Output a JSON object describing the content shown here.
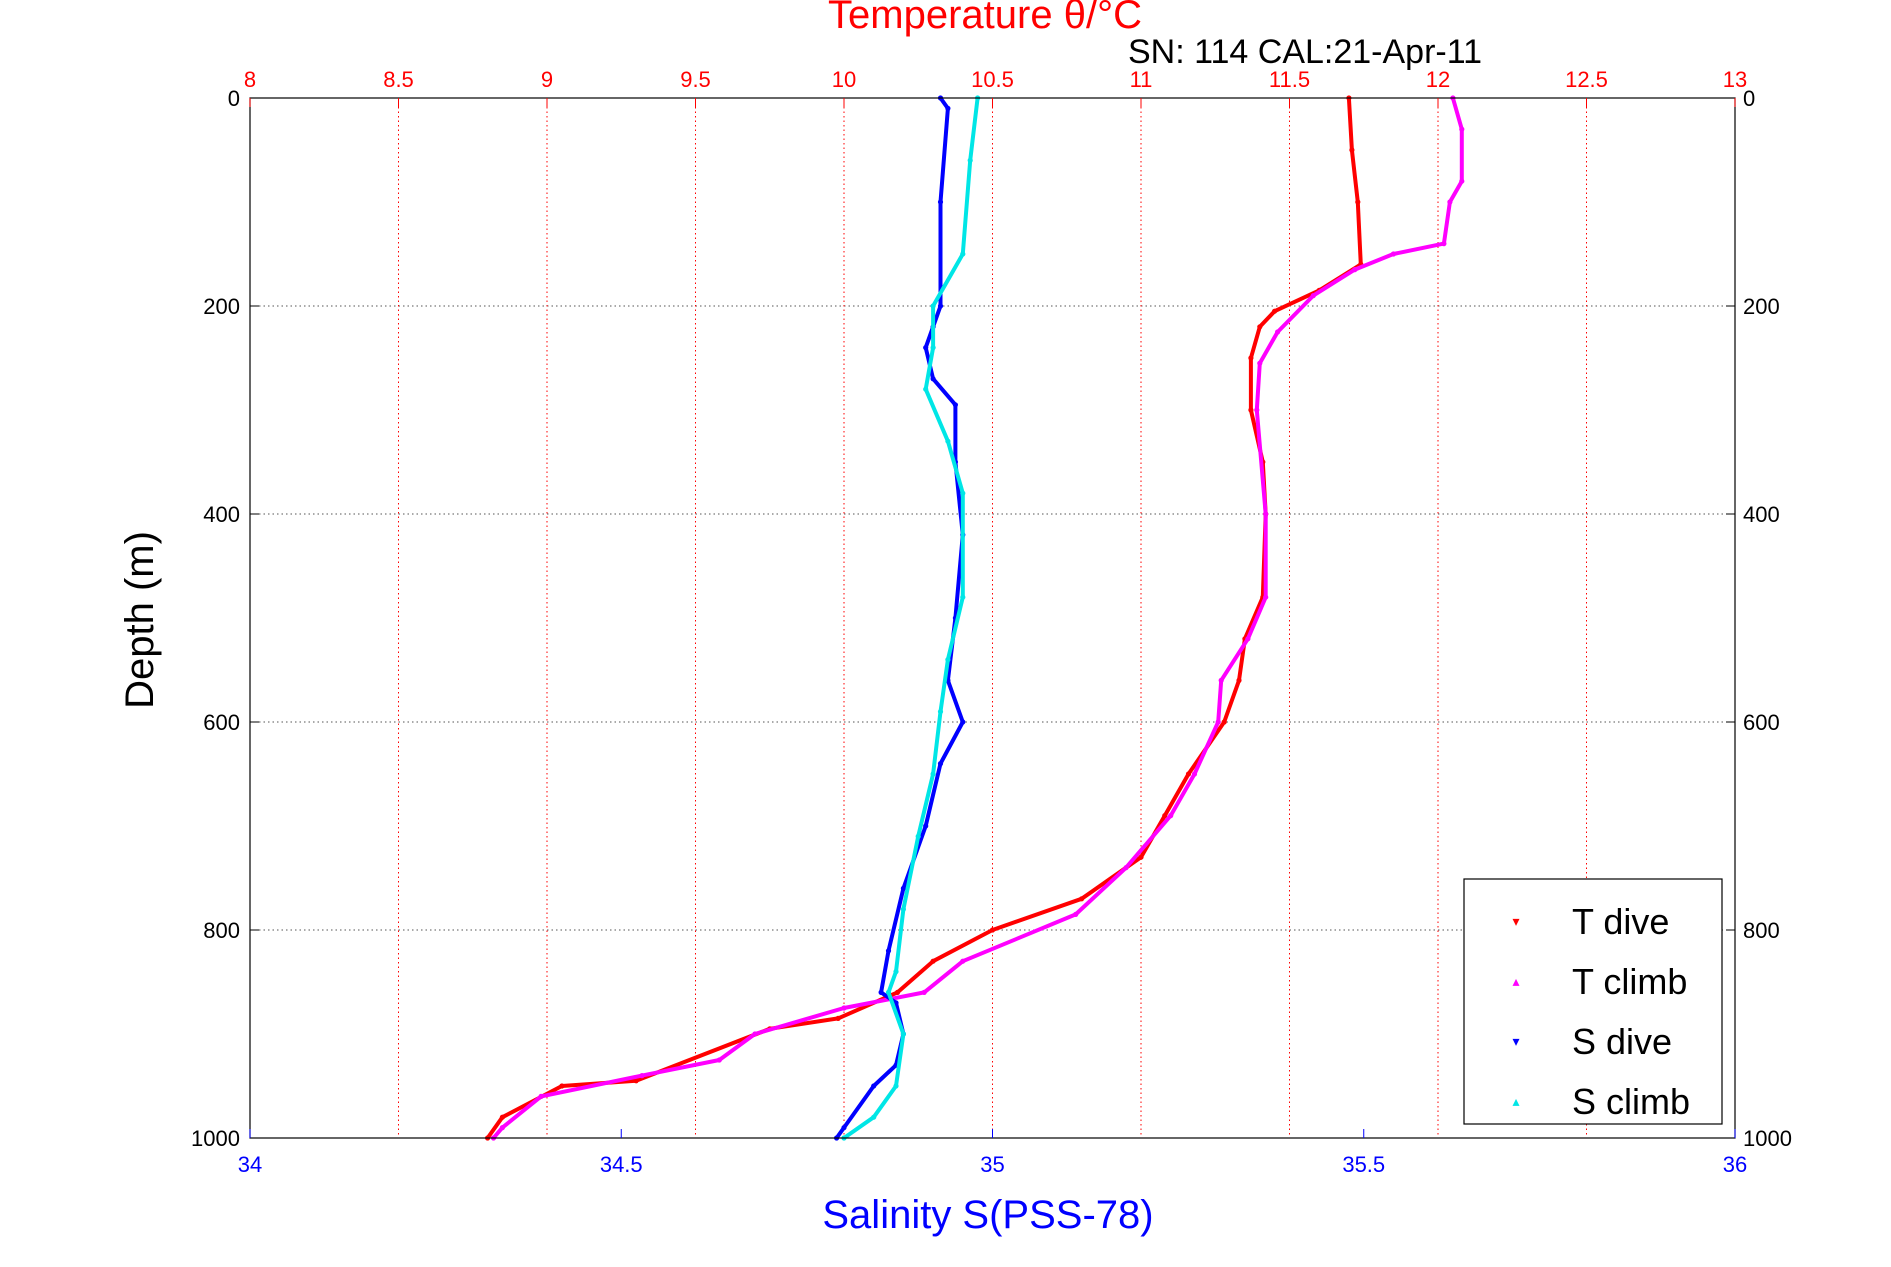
{
  "chart_data": {
    "type": "line",
    "title": "Temperature θ/°C",
    "subtitle": "SN: 114  CAL:21-Apr-11",
    "ylabel": "Depth (m)",
    "xlabel": "Salinity S(PSS-78)",
    "y_axis": {
      "label": "Depth (m)",
      "range": [
        0,
        1000
      ],
      "reversed": true,
      "ticks": [
        0,
        200,
        400,
        600,
        800,
        1000
      ],
      "tick_labels": [
        "0",
        "200",
        "400",
        "600",
        "800",
        "1000"
      ],
      "grid": true,
      "mirrored_right": true
    },
    "x_bottom": {
      "label": "Salinity S(PSS-78)",
      "range": [
        34,
        36
      ],
      "ticks": [
        34,
        34.5,
        35,
        35.5,
        36
      ],
      "tick_labels": [
        "34",
        "34.5",
        "35",
        "35.5",
        "36"
      ],
      "color": "#0000ff"
    },
    "x_top": {
      "label": "Temperature θ/°C",
      "range": [
        8,
        13
      ],
      "ticks": [
        8,
        8.5,
        9,
        9.5,
        10,
        10.5,
        11,
        11.5,
        12,
        12.5,
        13
      ],
      "tick_labels": [
        "8",
        "8.5",
        "9",
        "9.5",
        "10",
        "10.5",
        "11",
        "11.5",
        "12",
        "12.5",
        "13"
      ],
      "color": "#ff0000",
      "grid": true
    },
    "legend": {
      "placement": "bottom-right"
    },
    "series": [
      {
        "name": "T dive",
        "axis": "temperature",
        "color": "#ff0000",
        "marker": "▾",
        "points": [
          [
            11.7,
            0
          ],
          [
            11.71,
            50
          ],
          [
            11.73,
            100
          ],
          [
            11.74,
            160
          ],
          [
            11.6,
            185
          ],
          [
            11.45,
            205
          ],
          [
            11.4,
            220
          ],
          [
            11.37,
            250
          ],
          [
            11.37,
            300
          ],
          [
            11.41,
            350
          ],
          [
            11.42,
            400
          ],
          [
            11.41,
            480
          ],
          [
            11.35,
            520
          ],
          [
            11.33,
            560
          ],
          [
            11.28,
            600
          ],
          [
            11.16,
            650
          ],
          [
            11.08,
            690
          ],
          [
            11.0,
            730
          ],
          [
            10.8,
            770
          ],
          [
            10.5,
            800
          ],
          [
            10.3,
            830
          ],
          [
            10.18,
            860
          ],
          [
            9.98,
            885
          ],
          [
            9.75,
            895
          ],
          [
            9.3,
            945
          ],
          [
            9.05,
            950
          ],
          [
            8.85,
            980
          ],
          [
            8.8,
            1000
          ]
        ]
      },
      {
        "name": "T climb",
        "axis": "temperature",
        "color": "#ff00ff",
        "marker": "▴",
        "points": [
          [
            12.05,
            0
          ],
          [
            12.08,
            30
          ],
          [
            12.08,
            80
          ],
          [
            12.04,
            100
          ],
          [
            12.02,
            140
          ],
          [
            11.85,
            150
          ],
          [
            11.72,
            165
          ],
          [
            11.58,
            190
          ],
          [
            11.46,
            225
          ],
          [
            11.4,
            255
          ],
          [
            11.39,
            300
          ],
          [
            11.42,
            400
          ],
          [
            11.42,
            480
          ],
          [
            11.36,
            520
          ],
          [
            11.27,
            560
          ],
          [
            11.26,
            600
          ],
          [
            11.18,
            650
          ],
          [
            11.1,
            690
          ],
          [
            10.95,
            740
          ],
          [
            10.78,
            785
          ],
          [
            10.4,
            830
          ],
          [
            10.27,
            860
          ],
          [
            10.0,
            875
          ],
          [
            9.7,
            900
          ],
          [
            9.58,
            925
          ],
          [
            9.32,
            940
          ],
          [
            8.98,
            960
          ],
          [
            8.85,
            990
          ],
          [
            8.82,
            1000
          ]
        ]
      },
      {
        "name": "S dive",
        "axis": "salinity",
        "color": "#0000ff",
        "marker": "▾",
        "points": [
          [
            34.93,
            0
          ],
          [
            34.94,
            10
          ],
          [
            34.93,
            100
          ],
          [
            34.93,
            200
          ],
          [
            34.92,
            220
          ],
          [
            34.91,
            240
          ],
          [
            34.92,
            270
          ],
          [
            34.95,
            295
          ],
          [
            34.95,
            350
          ],
          [
            34.96,
            420
          ],
          [
            34.95,
            500
          ],
          [
            34.94,
            560
          ],
          [
            34.96,
            600
          ],
          [
            34.93,
            640
          ],
          [
            34.91,
            700
          ],
          [
            34.88,
            760
          ],
          [
            34.86,
            820
          ],
          [
            34.85,
            860
          ],
          [
            34.87,
            870
          ],
          [
            34.88,
            900
          ],
          [
            34.87,
            930
          ],
          [
            34.84,
            950
          ],
          [
            34.8,
            990
          ],
          [
            34.79,
            1000
          ]
        ]
      },
      {
        "name": "S climb",
        "axis": "salinity",
        "color": "#00e6e6",
        "marker": "▴",
        "points": [
          [
            34.98,
            0
          ],
          [
            34.97,
            60
          ],
          [
            34.96,
            150
          ],
          [
            34.92,
            200
          ],
          [
            34.92,
            240
          ],
          [
            34.91,
            280
          ],
          [
            34.94,
            330
          ],
          [
            34.96,
            380
          ],
          [
            34.96,
            480
          ],
          [
            34.94,
            540
          ],
          [
            34.93,
            590
          ],
          [
            34.92,
            650
          ],
          [
            34.9,
            710
          ],
          [
            34.88,
            780
          ],
          [
            34.87,
            840
          ],
          [
            34.86,
            860
          ],
          [
            34.88,
            900
          ],
          [
            34.87,
            950
          ],
          [
            34.84,
            980
          ],
          [
            34.8,
            1000
          ]
        ]
      }
    ]
  }
}
